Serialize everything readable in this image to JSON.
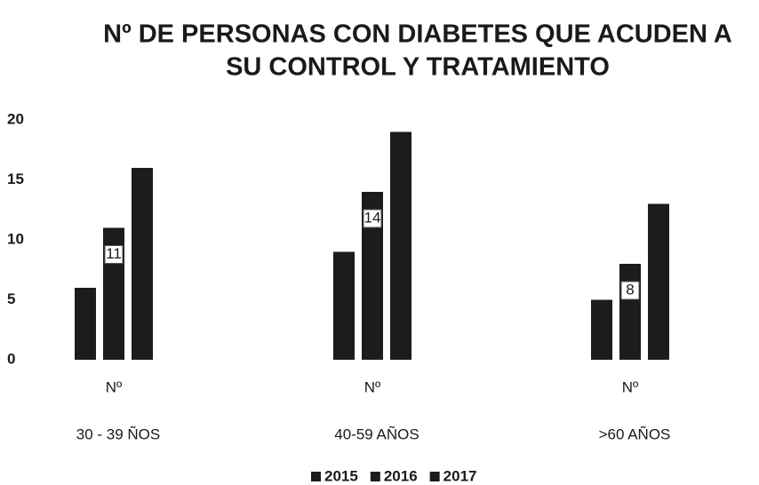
{
  "chart_data": {
    "type": "bar",
    "title": [
      "Nº DE PERSONAS CON DIABETES QUE ACUDEN A",
      "SU CONTROL Y TRATAMIENTO"
    ],
    "categories": [
      "Nº",
      "Nº",
      "Nº"
    ],
    "groups": [
      "30 - 39 ÑOS",
      "40-59 AÑOS",
      ">60 AÑOS"
    ],
    "series": [
      {
        "name": "2015",
        "color": "#1c1c1c",
        "values": [
          6,
          9,
          5
        ]
      },
      {
        "name": "2016",
        "color": "#1c1c1c",
        "values": [
          11,
          14,
          8
        ],
        "show_labels": true
      },
      {
        "name": "2017",
        "color": "#1c1c1c",
        "values": [
          16,
          19,
          13
        ]
      }
    ],
    "ylim": [
      0,
      20
    ],
    "yticks": [
      0,
      5,
      10,
      15,
      20
    ],
    "grid": false,
    "legend": "bottom"
  }
}
